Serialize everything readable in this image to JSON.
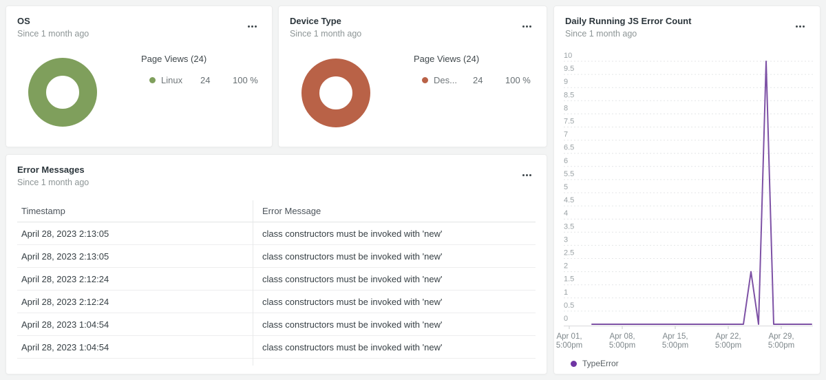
{
  "icons": {
    "more": "more-options"
  },
  "cards": {
    "os": {
      "title": "OS",
      "subtitle": "Since 1 month ago",
      "legend_title": "Page Views (24)",
      "item": {
        "label": "Linux",
        "value": "24",
        "percent": "100 %"
      },
      "color": "#7f9f5c"
    },
    "device": {
      "title": "Device Type",
      "subtitle": "Since 1 month ago",
      "legend_title": "Page Views (24)",
      "item": {
        "label": "Des...",
        "value": "24",
        "percent": "100 %"
      },
      "color": "#b96247"
    },
    "daily": {
      "title": "Daily Running JS Error Count",
      "subtitle": "Since 1 month ago",
      "legend": {
        "label": "TypeError",
        "dot_color": "#6f35a3"
      }
    },
    "errors": {
      "title": "Error Messages",
      "subtitle": "Since 1 month ago",
      "columns": [
        "Timestamp",
        "Error Message"
      ],
      "rows": [
        [
          "April 28, 2023 2:13:05",
          "class constructors must be invoked with 'new'"
        ],
        [
          "April 28, 2023 2:13:05",
          "class constructors must be invoked with 'new'"
        ],
        [
          "April 28, 2023 2:12:24",
          "class constructors must be invoked with 'new'"
        ],
        [
          "April 28, 2023 2:12:24",
          "class constructors must be invoked with 'new'"
        ],
        [
          "April 28, 2023 1:04:54",
          "class constructors must be invoked with 'new'"
        ],
        [
          "April 28, 2023 1:04:54",
          "class constructors must be invoked with 'new'"
        ]
      ]
    }
  },
  "chart_data": [
    {
      "type": "pie",
      "title": "OS",
      "legend_title": "Page Views (24)",
      "total": 24,
      "slices": [
        {
          "label": "Linux",
          "value": 24,
          "percent": 100,
          "color": "#7f9f5c"
        }
      ]
    },
    {
      "type": "pie",
      "title": "Device Type",
      "legend_title": "Page Views (24)",
      "total": 24,
      "slices": [
        {
          "label": "Des...",
          "value": 24,
          "percent": 100,
          "color": "#b96247"
        }
      ]
    },
    {
      "type": "line",
      "title": "Daily Running JS Error Count",
      "xlabel": "",
      "ylabel": "",
      "ylim": [
        0,
        10
      ],
      "y_step": 0.5,
      "grid": "dashed-horizontal",
      "legend_position": "bottom-left",
      "x_ticks": [
        {
          "day": 1,
          "line1": "Apr 01,",
          "line2": "5:00pm"
        },
        {
          "day": 8,
          "line1": "Apr 08,",
          "line2": "5:00pm"
        },
        {
          "day": 15,
          "line1": "Apr 15,",
          "line2": "5:00pm"
        },
        {
          "day": 22,
          "line1": "Apr 22,",
          "line2": "5:00pm"
        },
        {
          "day": 29,
          "line1": "Apr 29,",
          "line2": "5:00pm"
        }
      ],
      "series": [
        {
          "name": "TypeError",
          "color": "#7d51a5",
          "points_day_value": [
            [
              4,
              0
            ],
            [
              24,
              0
            ],
            [
              25,
              2
            ],
            [
              26,
              0
            ],
            [
              27,
              10
            ],
            [
              28,
              0
            ],
            [
              33,
              0
            ]
          ]
        }
      ]
    }
  ]
}
